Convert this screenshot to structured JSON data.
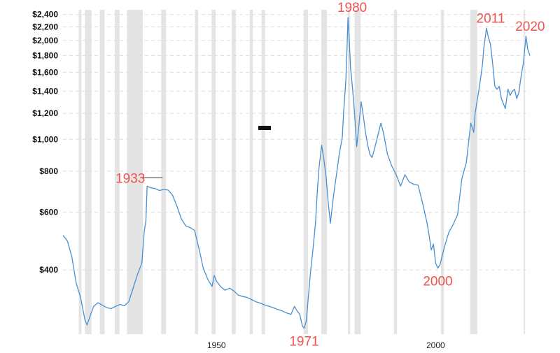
{
  "chart_data": {
    "type": "line",
    "title": "",
    "xlabel": "",
    "ylabel": "",
    "y_scale": "log",
    "xlim": [
      1915,
      2021.5
    ],
    "ylim": [
      255,
      2480
    ],
    "y_ticks": [
      {
        "value": 400,
        "label": "$400"
      },
      {
        "value": 600,
        "label": "$600"
      },
      {
        "value": 800,
        "label": "$800"
      },
      {
        "value": 1000,
        "label": "$1,000"
      },
      {
        "value": 1200,
        "label": "$1,200"
      },
      {
        "value": 1400,
        "label": "$1,400"
      },
      {
        "value": 1600,
        "label": "$1,600"
      },
      {
        "value": 1800,
        "label": "$1,800"
      },
      {
        "value": 2000,
        "label": "$2,000"
      },
      {
        "value": 2200,
        "label": "$2,200"
      },
      {
        "value": 2400,
        "label": "$2,400"
      }
    ],
    "x_ticks": [
      {
        "value": 1950,
        "label": "1950"
      },
      {
        "value": 2000,
        "label": "2000"
      }
    ],
    "grid": true,
    "recession_bands": [
      [
        1918.6,
        1919.2
      ],
      [
        1920.0,
        1921.5
      ],
      [
        1923.4,
        1924.5
      ],
      [
        1926.8,
        1927.9
      ],
      [
        1929.6,
        1933.2
      ],
      [
        1937.4,
        1938.5
      ],
      [
        1945.1,
        1945.8
      ],
      [
        1948.9,
        1949.8
      ],
      [
        1953.5,
        1954.4
      ],
      [
        1957.6,
        1958.3
      ],
      [
        1960.3,
        1961.1
      ],
      [
        1969.9,
        1970.9
      ],
      [
        1973.9,
        1975.2
      ],
      [
        1980.0,
        1980.5
      ],
      [
        1981.5,
        1982.9
      ],
      [
        1990.5,
        1991.2
      ],
      [
        2001.2,
        2001.9
      ],
      [
        2007.9,
        2009.5
      ],
      [
        2020.1,
        2020.4
      ]
    ],
    "series": [
      {
        "name": "",
        "points": [
          [
            1915.0,
            510
          ],
          [
            1916.0,
            490
          ],
          [
            1917.0,
            440
          ],
          [
            1918.0,
            365
          ],
          [
            1919.0,
            330
          ],
          [
            1920.0,
            282
          ],
          [
            1920.5,
            272
          ],
          [
            1921.0,
            285
          ],
          [
            1922.0,
            310
          ],
          [
            1923.0,
            318
          ],
          [
            1924.0,
            312
          ],
          [
            1925.0,
            307
          ],
          [
            1926.0,
            305
          ],
          [
            1927.0,
            310
          ],
          [
            1928.0,
            314
          ],
          [
            1929.0,
            311
          ],
          [
            1930.0,
            320
          ],
          [
            1931.0,
            352
          ],
          [
            1932.0,
            388
          ],
          [
            1933.0,
            420
          ],
          [
            1933.5,
            520
          ],
          [
            1933.9,
            565
          ],
          [
            1934.2,
            720
          ],
          [
            1935.0,
            712
          ],
          [
            1936.0,
            708
          ],
          [
            1937.0,
            698
          ],
          [
            1938.0,
            704
          ],
          [
            1939.0,
            700
          ],
          [
            1940.0,
            675
          ],
          [
            1941.0,
            625
          ],
          [
            1942.0,
            572
          ],
          [
            1943.0,
            545
          ],
          [
            1944.0,
            538
          ],
          [
            1945.0,
            528
          ],
          [
            1946.0,
            465
          ],
          [
            1947.0,
            405
          ],
          [
            1948.0,
            375
          ],
          [
            1949.0,
            356
          ],
          [
            1949.5,
            385
          ],
          [
            1950.0,
            370
          ],
          [
            1951.0,
            355
          ],
          [
            1952.0,
            347
          ],
          [
            1953.0,
            352
          ],
          [
            1954.0,
            345
          ],
          [
            1955.0,
            335
          ],
          [
            1956.0,
            332
          ],
          [
            1957.0,
            330
          ],
          [
            1958.0,
            325
          ],
          [
            1959.0,
            320
          ],
          [
            1960.0,
            317
          ],
          [
            1961.0,
            313
          ],
          [
            1962.0,
            310
          ],
          [
            1963.0,
            307
          ],
          [
            1964.0,
            303
          ],
          [
            1965.0,
            300
          ],
          [
            1966.0,
            296
          ],
          [
            1967.0,
            293
          ],
          [
            1967.8,
            310
          ],
          [
            1968.4,
            300
          ],
          [
            1969.0,
            293
          ],
          [
            1969.6,
            270
          ],
          [
            1970.0,
            266
          ],
          [
            1970.5,
            280
          ],
          [
            1971.0,
            335
          ],
          [
            1971.5,
            400
          ],
          [
            1972.0,
            460
          ],
          [
            1972.6,
            555
          ],
          [
            1973.0,
            690
          ],
          [
            1973.4,
            820
          ],
          [
            1974.0,
            960
          ],
          [
            1974.5,
            870
          ],
          [
            1975.0,
            770
          ],
          [
            1975.5,
            640
          ],
          [
            1976.0,
            555
          ],
          [
            1976.5,
            640
          ],
          [
            1977.0,
            720
          ],
          [
            1977.5,
            800
          ],
          [
            1978.0,
            900
          ],
          [
            1978.7,
            1010
          ],
          [
            1979.0,
            1200
          ],
          [
            1979.5,
            1500
          ],
          [
            1979.8,
            1900
          ],
          [
            1980.0,
            2350
          ],
          [
            1980.3,
            2000
          ],
          [
            1980.6,
            1650
          ],
          [
            1981.0,
            1450
          ],
          [
            1981.5,
            1200
          ],
          [
            1982.0,
            950
          ],
          [
            1982.5,
            1100
          ],
          [
            1983.0,
            1300
          ],
          [
            1983.5,
            1180
          ],
          [
            1984.0,
            1050
          ],
          [
            1984.5,
            960
          ],
          [
            1985.0,
            900
          ],
          [
            1985.5,
            880
          ],
          [
            1986.0,
            930
          ],
          [
            1987.0,
            1050
          ],
          [
            1987.5,
            1120
          ],
          [
            1988.0,
            1060
          ],
          [
            1988.5,
            980
          ],
          [
            1989.0,
            900
          ],
          [
            1990.0,
            830
          ],
          [
            1991.0,
            780
          ],
          [
            1992.0,
            720
          ],
          [
            1993.0,
            780
          ],
          [
            1993.5,
            760
          ],
          [
            1994.0,
            740
          ],
          [
            1995.0,
            730
          ],
          [
            1996.0,
            725
          ],
          [
            1997.0,
            640
          ],
          [
            1998.0,
            560
          ],
          [
            1998.5,
            510
          ],
          [
            1999.0,
            460
          ],
          [
            1999.5,
            480
          ],
          [
            2000.0,
            420
          ],
          [
            2000.5,
            405
          ],
          [
            2001.0,
            415
          ],
          [
            2002.0,
            470
          ],
          [
            2003.0,
            520
          ],
          [
            2004.0,
            550
          ],
          [
            2005.0,
            590
          ],
          [
            2006.0,
            760
          ],
          [
            2007.0,
            850
          ],
          [
            2008.0,
            1120
          ],
          [
            2008.7,
            1050
          ],
          [
            2009.0,
            1200
          ],
          [
            2010.0,
            1450
          ],
          [
            2010.7,
            1700
          ],
          [
            2011.0,
            1900
          ],
          [
            2011.6,
            2180
          ],
          [
            2012.0,
            2050
          ],
          [
            2012.5,
            1950
          ],
          [
            2013.0,
            1700
          ],
          [
            2013.5,
            1450
          ],
          [
            2014.0,
            1420
          ],
          [
            2014.5,
            1450
          ],
          [
            2015.0,
            1330
          ],
          [
            2015.9,
            1240
          ],
          [
            2016.5,
            1420
          ],
          [
            2017.0,
            1360
          ],
          [
            2017.5,
            1400
          ],
          [
            2018.0,
            1420
          ],
          [
            2018.5,
            1330
          ],
          [
            2019.0,
            1390
          ],
          [
            2019.5,
            1560
          ],
          [
            2020.0,
            1700
          ],
          [
            2020.6,
            2060
          ],
          [
            2021.0,
            1880
          ],
          [
            2021.5,
            1800
          ]
        ]
      }
    ],
    "annotations": [
      {
        "label": "1933",
        "x": 1934.2,
        "y": 720,
        "anchor": "above-left"
      },
      {
        "label": "1971",
        "x": 1970.0,
        "y": 266,
        "anchor": "below"
      },
      {
        "label": "1980",
        "x": 1980.0,
        "y": 2350,
        "anchor": "above"
      },
      {
        "label": "2000",
        "x": 2000.5,
        "y": 405,
        "anchor": "below"
      },
      {
        "label": "2011",
        "x": 2011.6,
        "y": 2180,
        "anchor": "above"
      },
      {
        "label": "2020",
        "x": 2020.6,
        "y": 2060,
        "anchor": "above"
      }
    ],
    "annotation_color": "#f0524f",
    "line_color": "#4a8fd0",
    "band_color": "#e4e4e4"
  }
}
